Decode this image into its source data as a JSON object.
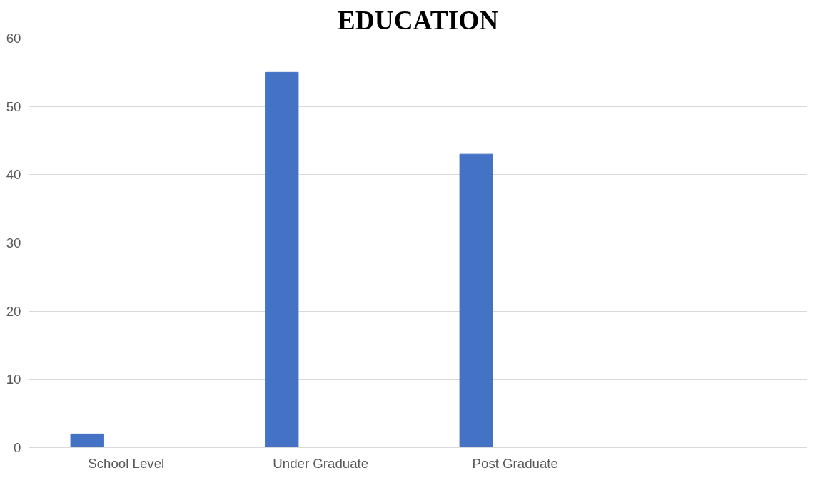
{
  "chart_data": {
    "type": "bar",
    "title": "EDUCATION",
    "categories": [
      "School Level",
      "Under Graduate",
      "Post Graduate",
      null
    ],
    "values": [
      2,
      55,
      43,
      null
    ],
    "color": "#4472c4",
    "ylim": [
      0,
      60
    ],
    "yticks": [
      0,
      10,
      20,
      30,
      40,
      50,
      60
    ],
    "grid": "y"
  }
}
